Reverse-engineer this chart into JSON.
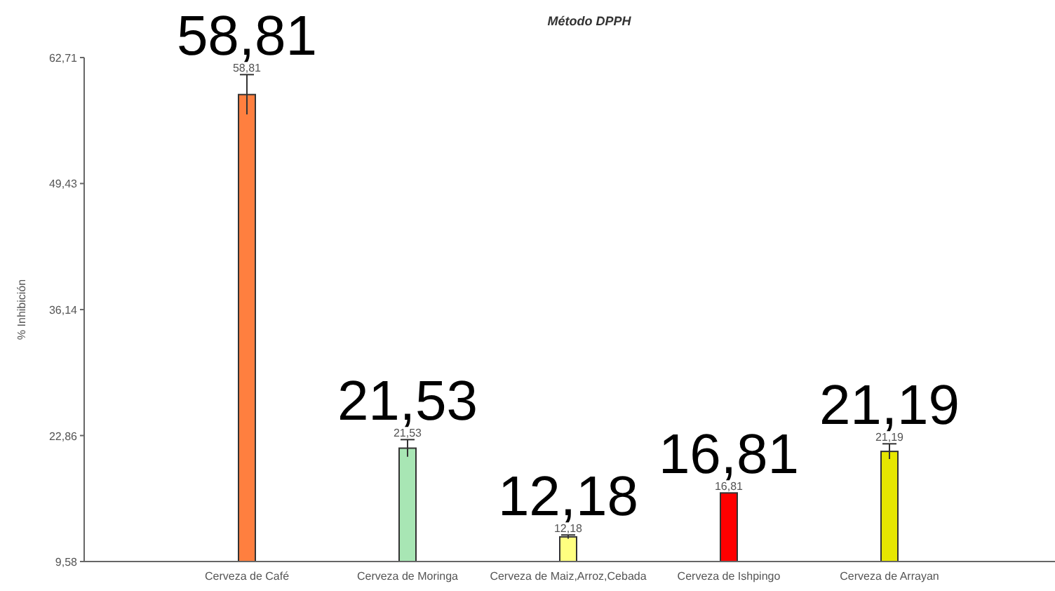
{
  "chart_data": {
    "type": "bar",
    "title": "Método DPPH",
    "ylabel": "% Inhibición",
    "categories": [
      "Cerveza de Café",
      "Cerveza de Moringa",
      "Cerveza de Maiz,Arroz,Cebada",
      "Cerveza de Ishpingo",
      "Cerveza de Arrayan"
    ],
    "values": [
      58.81,
      21.53,
      12.18,
      16.81,
      21.19
    ],
    "colors": [
      "#ff7f3f",
      "#a8e6b4",
      "#ffff80",
      "#ff0000",
      "#e6e600"
    ],
    "errors": [
      2.1,
      0.9,
      0.2,
      null,
      0.8
    ],
    "value_labels": [
      "58,81",
      "21,53",
      "12,18",
      "16,81",
      "21,19"
    ],
    "annotations": [
      {
        "text": "58,81",
        "x": "Cerveza de Café",
        "y": 58.81
      },
      {
        "text": "21,53",
        "x": "Cerveza de Moringa",
        "y": 21.53
      },
      {
        "text": "12,18",
        "x": "Cerveza de Maiz,Arroz,Cebada",
        "y": 12.18
      },
      {
        "text": "16,81",
        "x": "Cerveza de Ishpingo",
        "y": 16.81
      },
      {
        "text": "21,19",
        "x": "Cerveza de Arrayan",
        "y": 21.19
      }
    ],
    "ylim": [
      9.58,
      62.71
    ],
    "yticks": [
      {
        "value": 9.58,
        "label": "9,58"
      },
      {
        "value": 22.86,
        "label": "22,86"
      },
      {
        "value": 36.14,
        "label": "36,14"
      },
      {
        "value": 49.43,
        "label": "49,43"
      },
      {
        "value": 62.71,
        "label": "62,71"
      }
    ],
    "grid": false
  }
}
